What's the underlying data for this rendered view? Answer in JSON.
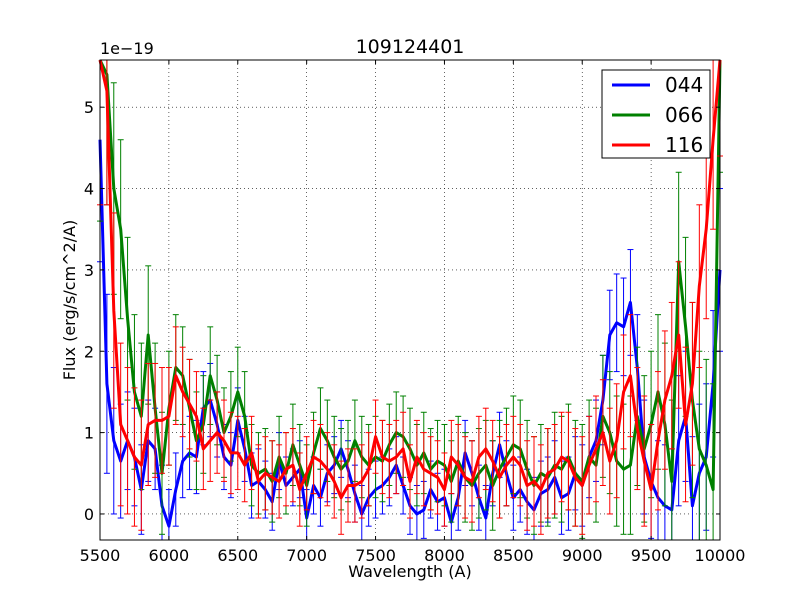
{
  "chart_data": {
    "type": "line",
    "title": "109124401",
    "xlabel": "Wavelength (A)",
    "ylabel": "Flux (erg/s/cm^2/A)",
    "y_scale_label": "1e−19",
    "xlim": [
      5500,
      10000
    ],
    "ylim": [
      -0.32,
      5.58
    ],
    "xticks": [
      5500,
      6000,
      6500,
      7000,
      7500,
      8000,
      8500,
      9000,
      9500,
      10000
    ],
    "yticks": [
      0,
      1,
      2,
      3,
      4,
      5
    ],
    "grid": true,
    "legend_position": "top-right",
    "series": [
      {
        "name": "044",
        "color": "#0000ff",
        "x": [
          5500,
          5550,
          5600,
          5650,
          5700,
          5750,
          5800,
          5850,
          5900,
          5950,
          6000,
          6050,
          6100,
          6150,
          6200,
          6250,
          6300,
          6350,
          6400,
          6450,
          6500,
          6550,
          6600,
          6650,
          6700,
          6750,
          6800,
          6850,
          6900,
          6950,
          7000,
          7050,
          7100,
          7150,
          7200,
          7250,
          7300,
          7350,
          7400,
          7450,
          7500,
          7550,
          7600,
          7650,
          7700,
          7750,
          7800,
          7850,
          7900,
          7950,
          8000,
          8050,
          8100,
          8150,
          8200,
          8250,
          8300,
          8350,
          8400,
          8450,
          8500,
          8550,
          8600,
          8650,
          8700,
          8750,
          8800,
          8850,
          8900,
          8950,
          9000,
          9050,
          9100,
          9150,
          9200,
          9250,
          9300,
          9350,
          9400,
          9450,
          9500,
          9550,
          9600,
          9650,
          9700,
          9750,
          9800,
          9850,
          9900,
          9950,
          10000
        ],
        "y": [
          4.6,
          1.6,
          0.9,
          0.65,
          0.9,
          0.7,
          0.3,
          0.9,
          0.8,
          0.1,
          -0.15,
          0.3,
          0.65,
          0.75,
          0.7,
          1.3,
          1.4,
          1.1,
          0.7,
          0.6,
          1.15,
          0.8,
          0.35,
          0.4,
          0.3,
          0.15,
          0.65,
          0.35,
          0.45,
          0.55,
          -0.05,
          0.35,
          0.2,
          0.5,
          0.6,
          0.8,
          0.55,
          0.25,
          0.0,
          0.2,
          0.3,
          0.35,
          0.45,
          0.6,
          0.35,
          0.1,
          0.0,
          0.05,
          0.3,
          0.15,
          0.2,
          -0.1,
          0.2,
          0.75,
          0.5,
          0.2,
          -0.05,
          0.5,
          0.85,
          0.5,
          0.2,
          0.3,
          0.15,
          0.05,
          0.25,
          0.3,
          0.45,
          0.2,
          0.25,
          0.5,
          0.35,
          0.7,
          0.9,
          1.4,
          2.2,
          2.35,
          2.3,
          2.6,
          1.8,
          0.7,
          0.4,
          0.2,
          0.1,
          0.05,
          0.9,
          1.2,
          0.1,
          0.5,
          0.7,
          1.6,
          3.0
        ],
        "errors": [
          1.5,
          1.1,
          0.9,
          0.7,
          0.6,
          0.6,
          0.55,
          0.5,
          0.5,
          0.5,
          0.45,
          0.45,
          0.45,
          0.45,
          0.45,
          0.45,
          0.45,
          0.4,
          0.4,
          0.4,
          0.4,
          0.4,
          0.4,
          0.4,
          0.35,
          0.35,
          0.35,
          0.35,
          0.35,
          0.35,
          0.35,
          0.35,
          0.35,
          0.35,
          0.35,
          0.35,
          0.35,
          0.35,
          0.35,
          0.35,
          0.35,
          0.35,
          0.35,
          0.35,
          0.35,
          0.35,
          0.35,
          0.35,
          0.35,
          0.35,
          0.35,
          0.35,
          0.4,
          0.4,
          0.4,
          0.4,
          0.4,
          0.4,
          0.4,
          0.4,
          0.4,
          0.4,
          0.4,
          0.4,
          0.4,
          0.4,
          0.45,
          0.45,
          0.45,
          0.45,
          0.5,
          0.5,
          0.5,
          0.55,
          0.55,
          0.6,
          0.6,
          0.65,
          0.65,
          0.7,
          0.7,
          0.7,
          0.75,
          0.75,
          0.8,
          0.8,
          0.85,
          0.85,
          0.9,
          0.9,
          1.0
        ]
      },
      {
        "name": "066",
        "color": "#008000",
        "x": [
          5500,
          5550,
          5600,
          5650,
          5700,
          5750,
          5800,
          5850,
          5900,
          5950,
          6000,
          6050,
          6100,
          6150,
          6200,
          6250,
          6300,
          6350,
          6400,
          6450,
          6500,
          6550,
          6600,
          6650,
          6700,
          6750,
          6800,
          6850,
          6900,
          6950,
          7000,
          7050,
          7100,
          7150,
          7200,
          7250,
          7300,
          7350,
          7400,
          7450,
          7500,
          7550,
          7600,
          7650,
          7700,
          7750,
          7800,
          7850,
          7900,
          7950,
          8000,
          8050,
          8100,
          8150,
          8200,
          8250,
          8300,
          8350,
          8400,
          8450,
          8500,
          8550,
          8600,
          8650,
          8700,
          8750,
          8800,
          8850,
          8900,
          8950,
          9000,
          9050,
          9100,
          9150,
          9200,
          9250,
          9300,
          9350,
          9400,
          9450,
          9500,
          9550,
          9600,
          9650,
          9700,
          9750,
          9800,
          9850,
          9900,
          9950,
          10000
        ],
        "y": [
          5.6,
          5.4,
          4.0,
          3.5,
          2.4,
          1.5,
          1.2,
          2.2,
          1.3,
          0.5,
          1.3,
          1.8,
          1.7,
          1.3,
          0.9,
          1.1,
          1.7,
          1.4,
          1.0,
          1.2,
          1.5,
          1.2,
          0.6,
          0.5,
          0.55,
          0.4,
          0.7,
          0.5,
          0.85,
          0.6,
          0.35,
          0.75,
          1.05,
          0.9,
          0.7,
          0.55,
          0.65,
          0.9,
          0.7,
          0.6,
          0.7,
          0.65,
          0.85,
          1.0,
          0.95,
          0.8,
          0.6,
          0.75,
          0.55,
          0.65,
          0.6,
          0.4,
          0.65,
          0.45,
          0.35,
          0.5,
          0.6,
          0.35,
          0.55,
          0.7,
          0.85,
          0.8,
          0.55,
          0.35,
          0.5,
          0.45,
          0.6,
          0.55,
          0.7,
          0.5,
          0.4,
          0.7,
          0.6,
          1.2,
          1.0,
          0.65,
          0.55,
          0.6,
          1.2,
          0.8,
          1.1,
          1.5,
          1.1,
          0.4,
          3.1,
          2.3,
          1.4,
          0.8,
          0.6,
          0.3,
          5.6
        ],
        "errors": [
          2.0,
          1.6,
          1.3,
          1.1,
          1.0,
          0.95,
          0.9,
          0.85,
          0.8,
          0.75,
          0.7,
          0.65,
          0.6,
          0.6,
          0.6,
          0.6,
          0.6,
          0.55,
          0.55,
          0.55,
          0.55,
          0.55,
          0.5,
          0.5,
          0.5,
          0.5,
          0.5,
          0.5,
          0.5,
          0.5,
          0.5,
          0.5,
          0.5,
          0.5,
          0.5,
          0.5,
          0.5,
          0.5,
          0.5,
          0.5,
          0.5,
          0.5,
          0.5,
          0.5,
          0.5,
          0.5,
          0.5,
          0.5,
          0.5,
          0.5,
          0.5,
          0.5,
          0.55,
          0.55,
          0.55,
          0.55,
          0.55,
          0.55,
          0.6,
          0.6,
          0.6,
          0.6,
          0.6,
          0.6,
          0.6,
          0.6,
          0.65,
          0.65,
          0.65,
          0.65,
          0.7,
          0.7,
          0.7,
          0.75,
          0.75,
          0.8,
          0.8,
          0.85,
          0.85,
          0.9,
          0.9,
          0.95,
          1.0,
          1.0,
          1.1,
          1.1,
          1.2,
          1.2,
          1.3,
          1.3,
          1.4
        ]
      },
      {
        "name": "116",
        "color": "#ff0000",
        "x": [
          5500,
          5550,
          5600,
          5650,
          5700,
          5750,
          5800,
          5850,
          5900,
          5950,
          6000,
          6050,
          6100,
          6150,
          6200,
          6250,
          6300,
          6350,
          6400,
          6450,
          6500,
          6550,
          6600,
          6650,
          6700,
          6750,
          6800,
          6850,
          6900,
          6950,
          7000,
          7050,
          7100,
          7150,
          7200,
          7250,
          7300,
          7350,
          7400,
          7450,
          7500,
          7550,
          7600,
          7650,
          7700,
          7750,
          7800,
          7850,
          7900,
          7950,
          8000,
          8050,
          8100,
          8150,
          8200,
          8250,
          8300,
          8350,
          8400,
          8450,
          8500,
          8550,
          8600,
          8650,
          8700,
          8750,
          8800,
          8850,
          8900,
          8950,
          9000,
          9050,
          9100,
          9150,
          9200,
          9250,
          9300,
          9350,
          9400,
          9450,
          9500,
          9550,
          9600,
          9650,
          9700,
          9750,
          9800,
          9850,
          9900,
          9950,
          10000
        ],
        "y": [
          5.6,
          5.2,
          2.5,
          1.1,
          0.9,
          0.7,
          0.6,
          1.1,
          1.15,
          1.15,
          1.2,
          1.7,
          1.5,
          1.35,
          1.2,
          0.8,
          0.9,
          1.0,
          0.9,
          0.75,
          0.75,
          0.6,
          0.75,
          0.4,
          0.5,
          0.45,
          0.4,
          0.55,
          0.6,
          0.3,
          0.5,
          0.7,
          0.65,
          0.55,
          0.4,
          0.2,
          0.35,
          0.35,
          0.4,
          0.55,
          0.95,
          0.7,
          0.65,
          0.7,
          0.8,
          0.4,
          0.7,
          0.55,
          0.5,
          0.45,
          0.3,
          0.7,
          0.6,
          0.45,
          0.4,
          0.7,
          0.8,
          0.65,
          0.45,
          0.6,
          0.7,
          0.6,
          0.35,
          0.4,
          0.3,
          0.5,
          0.55,
          0.7,
          0.65,
          0.45,
          0.35,
          0.6,
          0.8,
          1.0,
          0.65,
          0.9,
          1.5,
          1.7,
          1.05,
          0.65,
          0.3,
          0.9,
          1.4,
          1.7,
          2.2,
          1.1,
          1.6,
          2.8,
          3.5,
          4.6,
          5.6
        ],
        "errors": [
          1.8,
          1.4,
          1.2,
          1.0,
          0.9,
          0.85,
          0.8,
          0.75,
          0.7,
          0.65,
          0.6,
          0.6,
          0.55,
          0.55,
          0.55,
          0.5,
          0.5,
          0.5,
          0.5,
          0.5,
          0.45,
          0.45,
          0.45,
          0.45,
          0.45,
          0.45,
          0.45,
          0.45,
          0.45,
          0.45,
          0.45,
          0.45,
          0.45,
          0.45,
          0.45,
          0.45,
          0.45,
          0.45,
          0.45,
          0.45,
          0.45,
          0.45,
          0.45,
          0.45,
          0.45,
          0.45,
          0.45,
          0.45,
          0.45,
          0.45,
          0.45,
          0.45,
          0.5,
          0.5,
          0.5,
          0.5,
          0.5,
          0.5,
          0.5,
          0.5,
          0.5,
          0.5,
          0.55,
          0.55,
          0.55,
          0.55,
          0.55,
          0.55,
          0.6,
          0.6,
          0.6,
          0.6,
          0.65,
          0.65,
          0.65,
          0.7,
          0.7,
          0.75,
          0.75,
          0.8,
          0.8,
          0.85,
          0.85,
          0.9,
          0.9,
          0.95,
          1.0,
          1.0,
          1.1,
          1.1,
          1.2
        ]
      }
    ]
  }
}
